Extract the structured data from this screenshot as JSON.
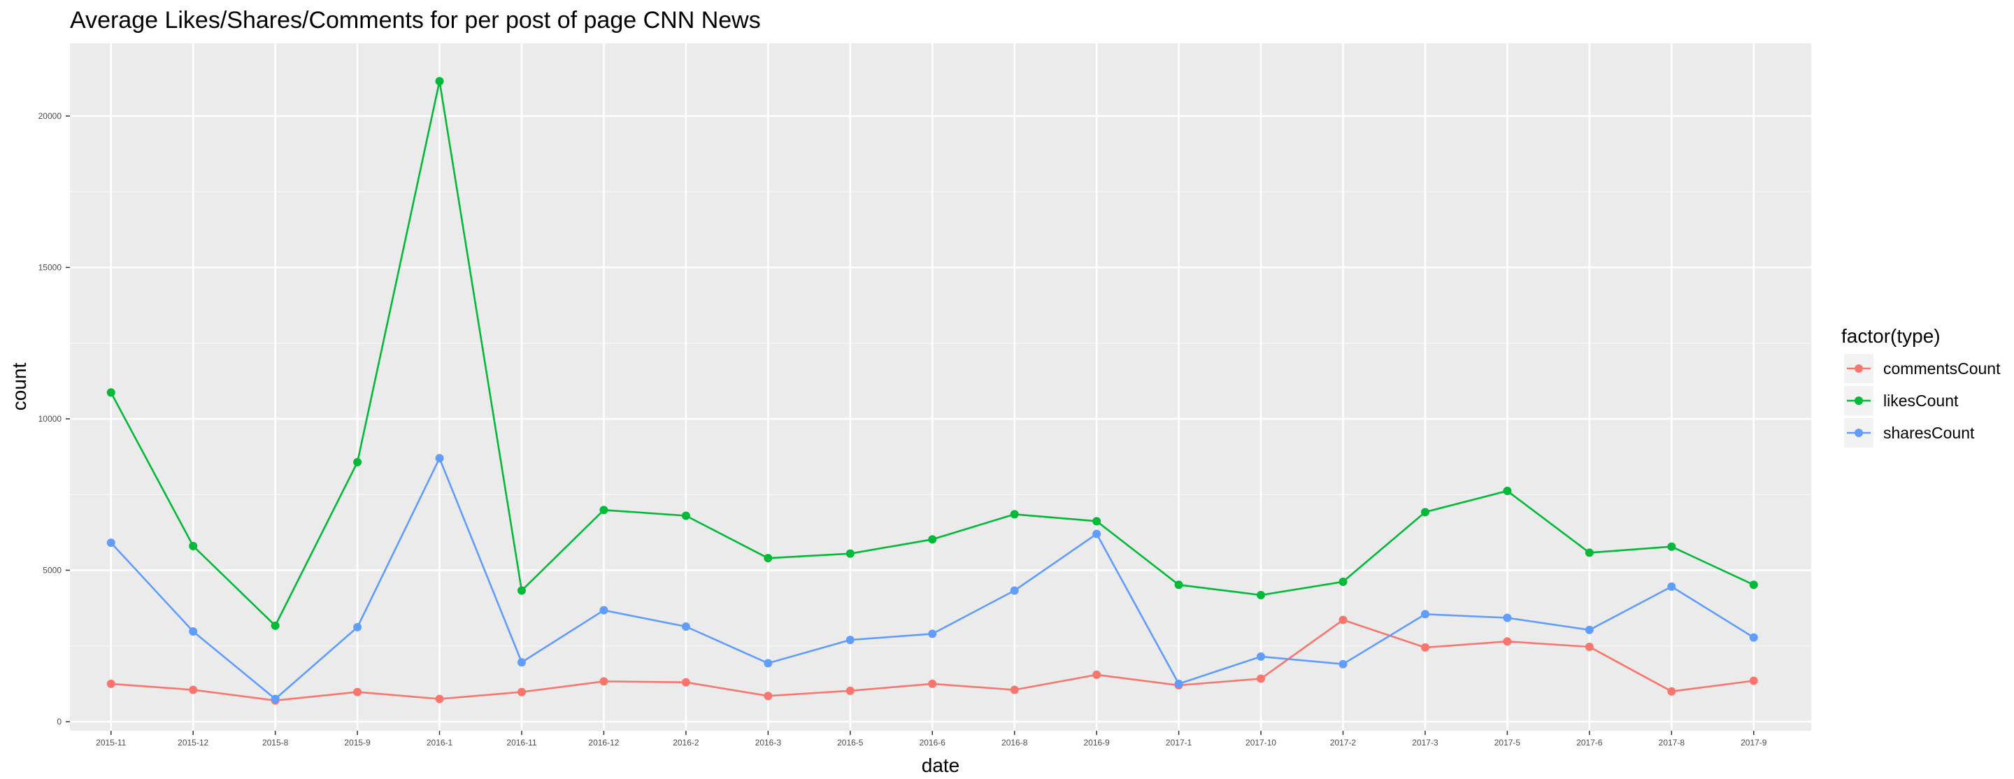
{
  "chart_data": {
    "type": "line",
    "title": "Average Likes/Shares/Comments for per post of page CNN News",
    "xlabel": "date",
    "ylabel": "count",
    "ylim": [
      -300,
      22400
    ],
    "yticks": [
      0,
      5000,
      10000,
      15000,
      20000
    ],
    "grid": true,
    "legend_title": "factor(type)",
    "legend_position": "right",
    "categories": [
      "2015-11",
      "2015-12",
      "2015-8",
      "2015-9",
      "2016-1",
      "2016-11",
      "2016-12",
      "2016-2",
      "2016-3",
      "2016-5",
      "2016-6",
      "2016-8",
      "2016-9",
      "2017-1",
      "2017-10",
      "2017-2",
      "2017-3",
      "2017-5",
      "2017-6",
      "2017-8",
      "2017-9"
    ],
    "series": [
      {
        "name": "commentsCount",
        "color": "#F8766D",
        "values": [
          1250,
          1050,
          700,
          980,
          750,
          980,
          1330,
          1300,
          850,
          1020,
          1250,
          1050,
          1550,
          1200,
          1420,
          3360,
          2450,
          2650,
          2470,
          1000,
          1350
        ]
      },
      {
        "name": "likesCount",
        "color": "#00BA38",
        "values": [
          10870,
          5800,
          3170,
          8570,
          21150,
          4330,
          6990,
          6800,
          5400,
          5550,
          6020,
          6850,
          6620,
          4520,
          4180,
          4620,
          6920,
          7620,
          5580,
          5780,
          4520
        ]
      },
      {
        "name": "sharesCount",
        "color": "#619CFF",
        "values": [
          5910,
          2980,
          750,
          3120,
          8700,
          1960,
          3680,
          3140,
          1930,
          2700,
          2900,
          4330,
          6200,
          1250,
          2150,
          1900,
          3550,
          3430,
          3030,
          4460,
          2780
        ]
      }
    ]
  }
}
